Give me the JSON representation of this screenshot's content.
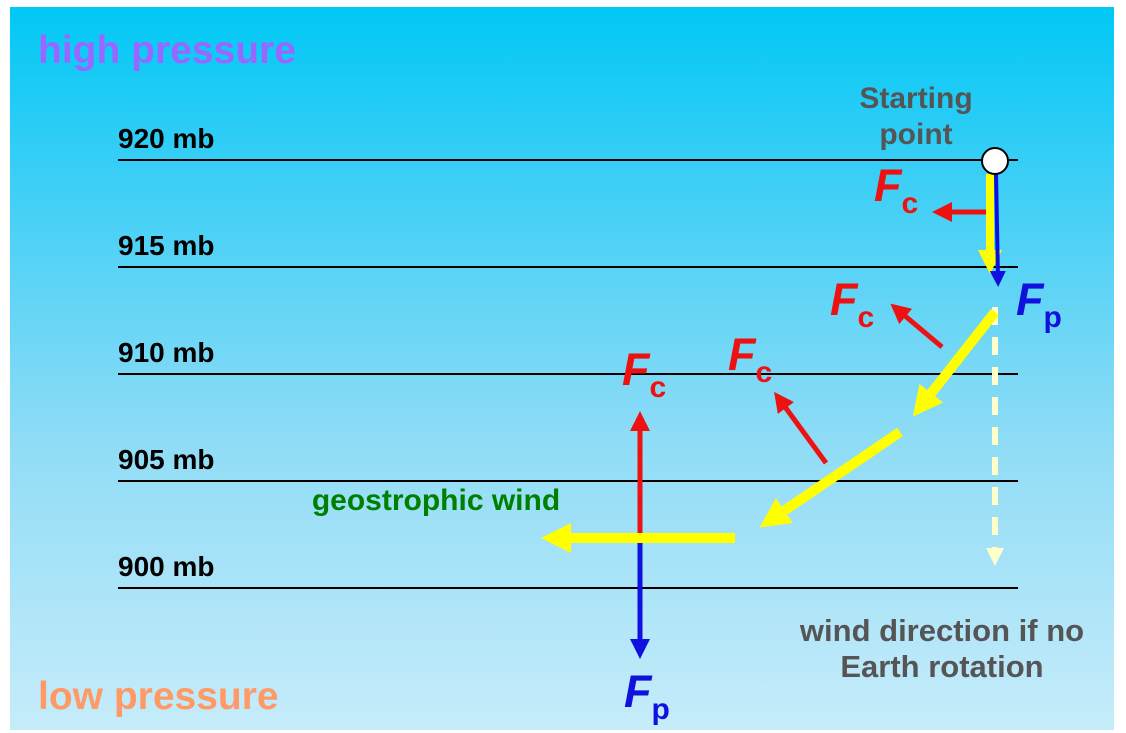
{
  "diagram": {
    "high_pressure_label": "high pressure",
    "low_pressure_label": "low pressure",
    "isobars": [
      "920 mb",
      "915 mb",
      "910 mb",
      "905 mb",
      "900 mb"
    ],
    "starting_point_label": "Starting point",
    "geostrophic_label": "geostrophic wind",
    "no_rotation_label": "wind direction if no Earth rotation",
    "force_coriolis": {
      "symbol": "F",
      "subscript": "c"
    },
    "force_pressure": {
      "symbol": "F",
      "subscript": "p"
    }
  },
  "colors": {
    "background_top": "#00c8f5",
    "background_bottom": "#c6ecfa",
    "high_pressure": "#9966ff",
    "low_pressure": "#ff9966",
    "coriolis": "#ee1111",
    "pressure_gradient": "#1111dd",
    "wind_path": "#ffff00",
    "geostrophic_text": "#008000",
    "annotation_text": "#555555"
  }
}
